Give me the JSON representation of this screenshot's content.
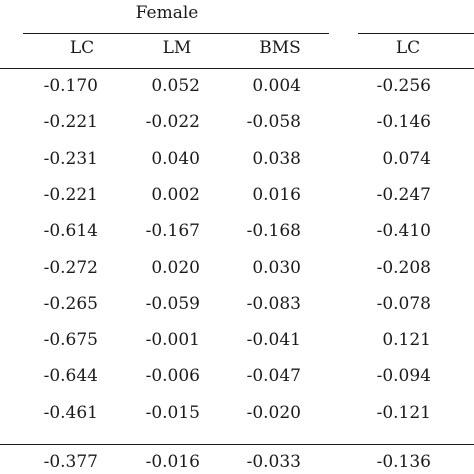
{
  "group_title": "Female",
  "headers": [
    "LC",
    "LM",
    "BMS",
    "LC"
  ],
  "rows": [
    [
      "-0.170",
      "0.052",
      "0.004",
      "-0.256"
    ],
    [
      "-0.221",
      "-0.022",
      "-0.058",
      "-0.146"
    ],
    [
      "-0.231",
      "0.040",
      "0.038",
      "0.074"
    ],
    [
      "-0.221",
      "0.002",
      "0.016",
      "-0.247"
    ],
    [
      "-0.614",
      "-0.167",
      "-0.168",
      "-0.410"
    ],
    [
      "-0.272",
      "0.020",
      "0.030",
      "-0.208"
    ],
    [
      "-0.265",
      "-0.059",
      "-0.083",
      "-0.078"
    ],
    [
      "-0.675",
      "-0.001",
      "-0.041",
      "0.121"
    ],
    [
      "-0.644",
      "-0.006",
      "-0.047",
      "-0.094"
    ],
    [
      "-0.461",
      "-0.015",
      "-0.020",
      "-0.121"
    ]
  ],
  "footer_row": [
    "-0.377",
    "-0.016",
    "-0.033",
    "-0.136"
  ]
}
